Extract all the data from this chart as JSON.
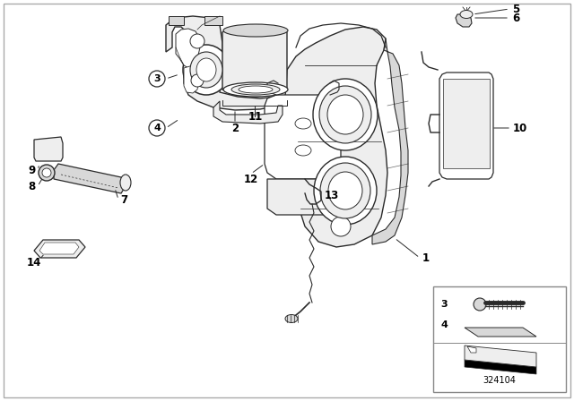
{
  "background_color": "#ffffff",
  "border_color": "#bbbbbb",
  "part_number": "324104",
  "fig_width": 6.4,
  "fig_height": 4.48,
  "dpi": 100,
  "line_color": "#2a2a2a",
  "text_color": "#000000",
  "label_font_size": 8.5,
  "gray_fill": "#d8d8d8",
  "light_gray": "#eeeeee",
  "mid_gray": "#bbbbbb",
  "dark_gray": "#888888"
}
